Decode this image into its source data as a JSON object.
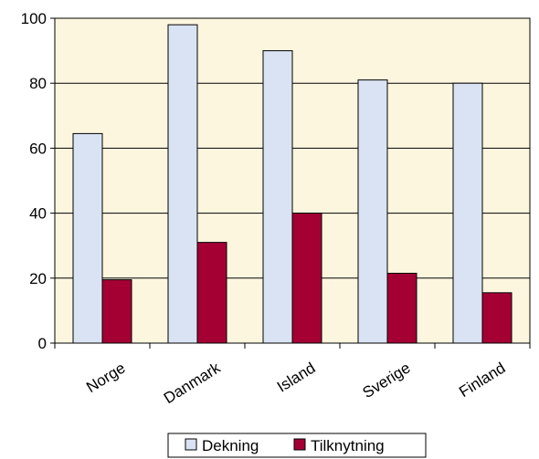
{
  "chart_data": {
    "type": "bar",
    "categories": [
      "Norge",
      "Danmark",
      "Island",
      "Sverige",
      "Finland"
    ],
    "series": [
      {
        "name": "Dekning",
        "values": [
          64.5,
          98,
          90,
          81,
          80
        ],
        "color": "#dae3f3"
      },
      {
        "name": "Tilknytning",
        "values": [
          19.5,
          31,
          40,
          21.5,
          15.5
        ],
        "color": "#a50034"
      }
    ],
    "ylim": [
      0,
      100
    ],
    "yticks": [
      0,
      20,
      40,
      60,
      80,
      100
    ],
    "grid": true,
    "plot_background": "#fdf6df",
    "legend_position": "bottom-center"
  }
}
